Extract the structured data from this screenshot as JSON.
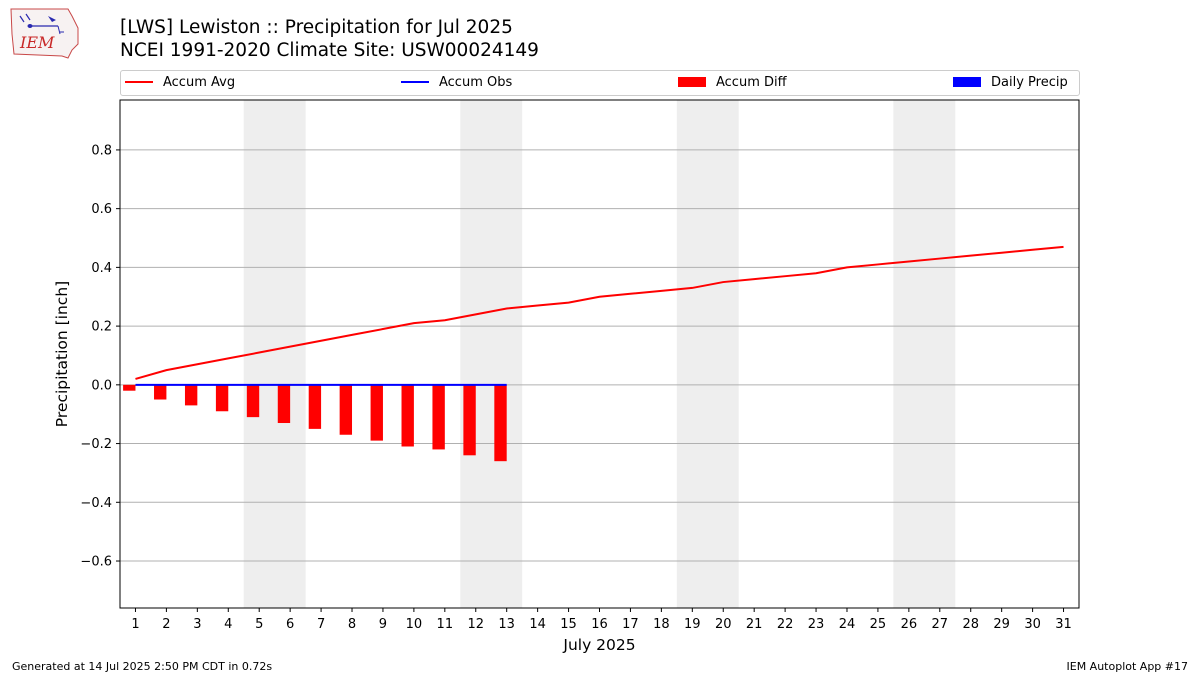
{
  "header": {
    "logo_text": "IEM",
    "title_line1": "[LWS] Lewiston :: Precipitation for Jul 2025",
    "title_line2": "NCEI 1991-2020 Climate Site: USW00024149"
  },
  "footer": {
    "generated": "Generated at 14 Jul 2025 2:50 PM CDT in 0.72s",
    "app": "IEM Autoplot App #17"
  },
  "colors": {
    "accum_avg": "#ff0000",
    "accum_obs": "#0000ff",
    "accum_diff": "#ff0000",
    "daily_precip": "#0000ff",
    "weekend_shade": "#eeeeee",
    "grid": "#b0b0b0"
  },
  "chart_data": {
    "type": "line",
    "title": "[LWS] Lewiston :: Precipitation for Jul 2025",
    "subtitle": "NCEI 1991-2020 Climate Site: USW00024149",
    "xlabel": "July 2025",
    "ylabel": "Precipitation [inch]",
    "ylim": [
      -0.76,
      0.97
    ],
    "yticks": [
      -0.6,
      -0.4,
      -0.2,
      0.0,
      0.2,
      0.4,
      0.6,
      0.8
    ],
    "ytick_labels": [
      "−0.6",
      "−0.4",
      "−0.2",
      "0.0",
      "0.2",
      "0.4",
      "0.6",
      "0.8"
    ],
    "x": [
      1,
      2,
      3,
      4,
      5,
      6,
      7,
      8,
      9,
      10,
      11,
      12,
      13,
      14,
      15,
      16,
      17,
      18,
      19,
      20,
      21,
      22,
      23,
      24,
      25,
      26,
      27,
      28,
      29,
      30,
      31
    ],
    "grid": "horizontal",
    "legend_position": "top",
    "shaded_days": [
      [
        5,
        6
      ],
      [
        12,
        13
      ],
      [
        19,
        20
      ],
      [
        26,
        27
      ]
    ],
    "legend": [
      "Accum Avg",
      "Accum Obs",
      "Accum Diff",
      "Daily Precip"
    ],
    "series": [
      {
        "name": "Accum Avg",
        "type": "line",
        "x": [
          1,
          2,
          3,
          4,
          5,
          6,
          7,
          8,
          9,
          10,
          11,
          12,
          13,
          14,
          15,
          16,
          17,
          18,
          19,
          20,
          21,
          22,
          23,
          24,
          25,
          26,
          27,
          28,
          29,
          30,
          31
        ],
        "values": [
          0.02,
          0.05,
          0.07,
          0.09,
          0.11,
          0.13,
          0.15,
          0.17,
          0.19,
          0.21,
          0.22,
          0.24,
          0.26,
          0.27,
          0.28,
          0.3,
          0.31,
          0.32,
          0.33,
          0.35,
          0.36,
          0.37,
          0.38,
          0.4,
          0.41,
          0.42,
          0.43,
          0.44,
          0.45,
          0.46,
          0.47
        ]
      },
      {
        "name": "Accum Obs",
        "type": "line",
        "x": [
          1,
          2,
          3,
          4,
          5,
          6,
          7,
          8,
          9,
          10,
          11,
          12,
          13
        ],
        "values": [
          0,
          0,
          0,
          0,
          0,
          0,
          0,
          0,
          0,
          0,
          0,
          0,
          0
        ]
      },
      {
        "name": "Accum Diff",
        "type": "bar",
        "x": [
          1,
          2,
          3,
          4,
          5,
          6,
          7,
          8,
          9,
          10,
          11,
          12,
          13
        ],
        "values": [
          -0.02,
          -0.05,
          -0.07,
          -0.09,
          -0.11,
          -0.13,
          -0.15,
          -0.17,
          -0.19,
          -0.21,
          -0.22,
          -0.24,
          -0.26
        ]
      },
      {
        "name": "Daily Precip",
        "type": "bar",
        "x": [
          1,
          2,
          3,
          4,
          5,
          6,
          7,
          8,
          9,
          10,
          11,
          12,
          13
        ],
        "values": [
          0,
          0,
          0,
          0,
          0,
          0,
          0,
          0,
          0,
          0,
          0,
          0,
          0
        ]
      }
    ]
  }
}
